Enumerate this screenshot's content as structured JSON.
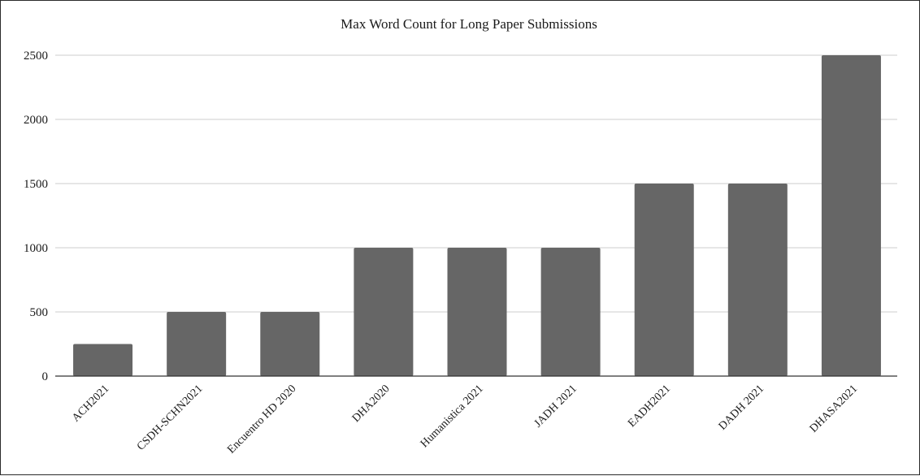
{
  "chart_data": {
    "type": "bar",
    "title": "Max Word Count for Long Paper Submissions",
    "xlabel": "",
    "ylabel": "",
    "categories": [
      "ACH2021",
      "CSDH-SCHN2021",
      "Encuentro HD 2020",
      "DHA2020",
      "Humanistica 2021",
      "JADH 2021",
      "EADH2021",
      "DADH 2021",
      "DHASA2021"
    ],
    "values": [
      250,
      500,
      500,
      1000,
      1000,
      1000,
      1500,
      1500,
      2500
    ],
    "ylim": [
      0,
      2500
    ],
    "yticks": [
      "0",
      "500",
      "1000",
      "1500",
      "2000",
      "2500"
    ],
    "grid": true,
    "legend": "none",
    "colors": {
      "bar": "#666666",
      "grid": "#cccccc",
      "axis": "#333333"
    }
  }
}
